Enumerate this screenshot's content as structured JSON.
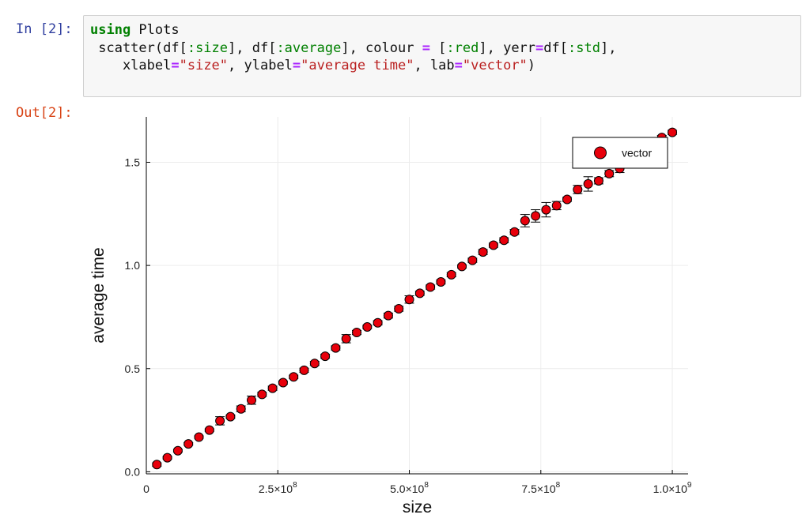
{
  "cell_in": {
    "prompt": "In [2]:",
    "code_lines": [
      [
        {
          "t": "using",
          "c": "kw"
        },
        {
          "t": " Plots",
          "c": ""
        }
      ],
      [
        {
          "t": " scatter(df[",
          "c": ""
        },
        {
          "t": ":size",
          "c": "sym"
        },
        {
          "t": "], df[",
          "c": ""
        },
        {
          "t": ":average",
          "c": "sym"
        },
        {
          "t": "], colour ",
          "c": ""
        },
        {
          "t": "=",
          "c": "op"
        },
        {
          "t": " [",
          "c": ""
        },
        {
          "t": ":red",
          "c": "sym"
        },
        {
          "t": "], yerr",
          "c": ""
        },
        {
          "t": "=",
          "c": "op"
        },
        {
          "t": "df[",
          "c": ""
        },
        {
          "t": ":std",
          "c": "sym"
        },
        {
          "t": "],",
          "c": ""
        }
      ],
      [
        {
          "t": "    xlabel",
          "c": ""
        },
        {
          "t": "=",
          "c": "op"
        },
        {
          "t": "\"size\"",
          "c": "str"
        },
        {
          "t": ", ylabel",
          "c": ""
        },
        {
          "t": "=",
          "c": "op"
        },
        {
          "t": "\"average time\"",
          "c": "str"
        },
        {
          "t": ", lab",
          "c": ""
        },
        {
          "t": "=",
          "c": "op"
        },
        {
          "t": "\"vector\"",
          "c": "str"
        },
        {
          "t": ")",
          "c": ""
        }
      ]
    ]
  },
  "cell_out": {
    "prompt": "Out[2]:"
  },
  "chart_data": {
    "type": "scatter",
    "xlabel": "size",
    "ylabel": "average time",
    "xlim": [
      0,
      1030000000
    ],
    "ylim": [
      -0.01,
      1.72
    ],
    "xticks": [
      {
        "value": 0,
        "label": "0",
        "exp": ""
      },
      {
        "value": 250000000,
        "label": "2.5×10",
        "exp": "8"
      },
      {
        "value": 500000000,
        "label": "5.0×10",
        "exp": "8"
      },
      {
        "value": 750000000,
        "label": "7.5×10",
        "exp": "8"
      },
      {
        "value": 1000000000,
        "label": "1.0×10",
        "exp": "9"
      }
    ],
    "yticks": [
      {
        "value": 0.0,
        "label": "0.0"
      },
      {
        "value": 0.5,
        "label": "0.5"
      },
      {
        "value": 1.0,
        "label": "1.0"
      },
      {
        "value": 1.5,
        "label": "1.5"
      }
    ],
    "grid": true,
    "legend_position": "top-right",
    "marker_color": "#e8000b",
    "series": [
      {
        "name": "vector",
        "x": [
          20000000,
          40000000,
          60000000,
          80000000,
          100000000,
          120000000,
          140000000,
          160000000,
          180000000,
          200000000,
          220000000,
          240000000,
          260000000,
          280000000,
          300000000,
          320000000,
          340000000,
          360000000,
          380000000,
          400000000,
          420000000,
          440000000,
          460000000,
          480000000,
          500000000,
          520000000,
          540000000,
          560000000,
          580000000,
          600000000,
          620000000,
          640000000,
          660000000,
          680000000,
          700000000,
          720000000,
          740000000,
          760000000,
          780000000,
          800000000,
          820000000,
          840000000,
          860000000,
          880000000,
          900000000,
          920000000,
          940000000,
          960000000,
          980000000,
          1000000000
        ],
        "y": [
          0.035,
          0.068,
          0.102,
          0.135,
          0.168,
          0.202,
          0.247,
          0.267,
          0.305,
          0.347,
          0.375,
          0.405,
          0.432,
          0.46,
          0.492,
          0.525,
          0.56,
          0.6,
          0.645,
          0.675,
          0.702,
          0.722,
          0.757,
          0.79,
          0.835,
          0.865,
          0.895,
          0.92,
          0.955,
          0.995,
          1.025,
          1.065,
          1.098,
          1.122,
          1.162,
          1.217,
          1.24,
          1.27,
          1.29,
          1.32,
          1.368,
          1.395,
          1.41,
          1.445,
          1.47,
          1.505,
          1.54,
          1.595,
          1.62,
          1.645
        ],
        "yerr": [
          0.008,
          0.006,
          0.006,
          0.006,
          0.006,
          0.006,
          0.02,
          0.008,
          0.014,
          0.02,
          0.01,
          0.01,
          0.008,
          0.008,
          0.01,
          0.01,
          0.01,
          0.01,
          0.02,
          0.01,
          0.008,
          0.01,
          0.012,
          0.012,
          0.018,
          0.01,
          0.01,
          0.01,
          0.01,
          0.008,
          0.01,
          0.012,
          0.01,
          0.012,
          0.012,
          0.03,
          0.03,
          0.035,
          0.02,
          0.01,
          0.02,
          0.035,
          0.015,
          0.015,
          0.02,
          0.015,
          0.02,
          0.015,
          0.01,
          0.01
        ]
      }
    ]
  }
}
